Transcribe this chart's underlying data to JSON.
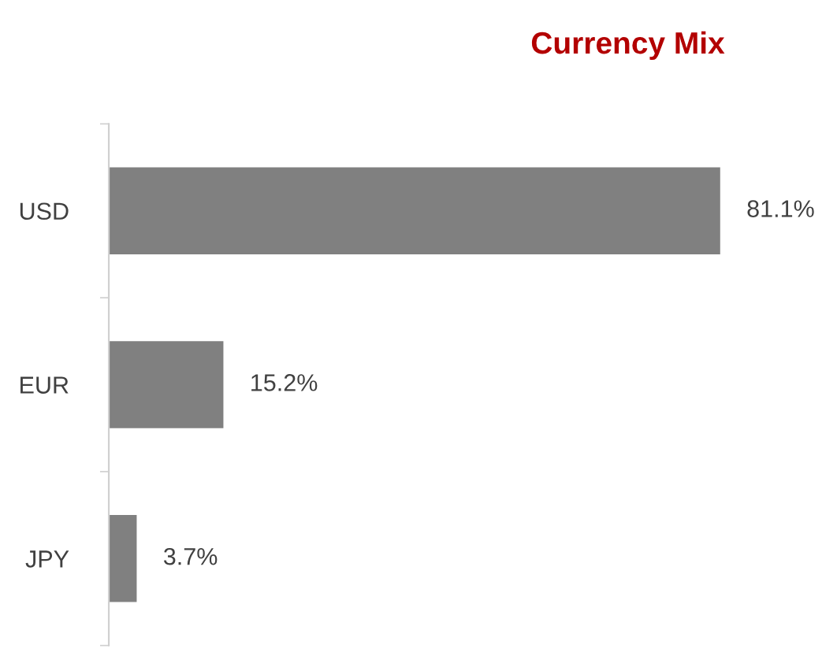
{
  "chart_data": {
    "type": "bar",
    "orientation": "horizontal",
    "title": "Currency Mix",
    "categories": [
      "USD",
      "EUR",
      "JPY"
    ],
    "values": [
      81.1,
      15.2,
      3.7
    ],
    "value_labels": [
      "81.1%",
      "15.2%",
      "3.7%"
    ],
    "color": "#808080"
  }
}
